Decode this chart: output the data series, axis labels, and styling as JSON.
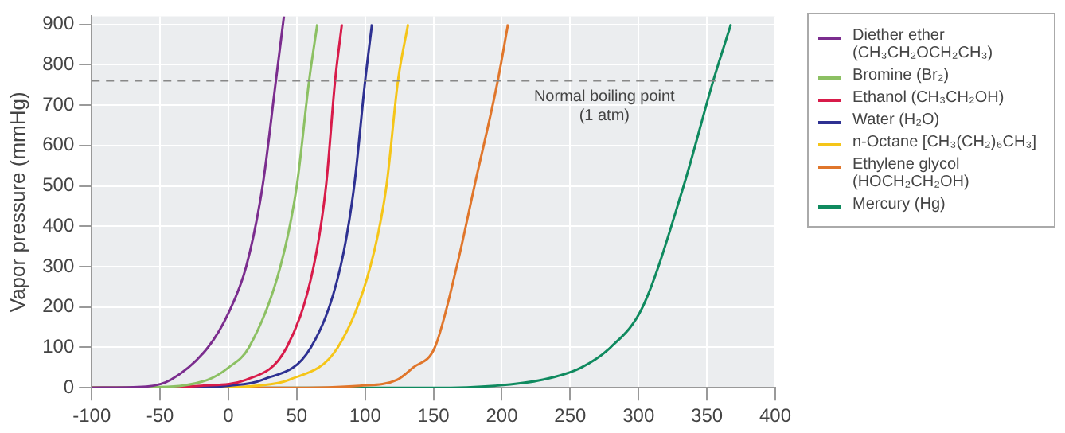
{
  "chart_data": {
    "type": "line",
    "ylabel": "Vapor pressure (mmHg)",
    "xlim": [
      -100,
      400
    ],
    "xticks": [
      -100,
      -50,
      0,
      50,
      100,
      150,
      200,
      250,
      300,
      350,
      400
    ],
    "ylim": [
      0,
      920
    ],
    "yticks": [
      0,
      100,
      200,
      300,
      400,
      500,
      600,
      700,
      800,
      900
    ],
    "grid": true,
    "legend": "right",
    "marker": "none",
    "series": [
      {
        "name": "Diether ether (CH₃CH₂OCH₂CH₃)",
        "color": "#7b2d8e",
        "x": [
          -100,
          -60,
          -42,
          -15,
          0,
          13,
          25,
          34.7,
          40.6
        ],
        "values": [
          0,
          3,
          20,
          100,
          185,
          300,
          500,
          760,
          920
        ]
      },
      {
        "name": "Bromine (Br₂)",
        "color": "#8cc063",
        "x": [
          -100,
          -50,
          -15,
          0,
          15,
          38,
          50,
          59,
          65
        ],
        "values": [
          0,
          2,
          20,
          50,
          100,
          300,
          500,
          760,
          900
        ]
      },
      {
        "name": "Ethanol (CH₃CH₂OH)",
        "color": "#d81b4a",
        "x": [
          -100,
          -60,
          -20,
          13,
          42.6,
          62.3,
          71.4,
          78,
          83
        ],
        "values": [
          0,
          0,
          5,
          20,
          100,
          300,
          500,
          760,
          900
        ]
      },
      {
        "name": "Water (H₂O)",
        "color": "#2e3192",
        "x": [
          -100,
          -40,
          0,
          25,
          60.3,
          82,
          92,
          100,
          105
        ],
        "values": [
          0,
          0,
          5,
          20,
          100,
          300,
          500,
          760,
          900
        ]
      },
      {
        "name": "n-Octane [CH₃(CH₂)₆CH₃]",
        "color": "#f5c518",
        "x": [
          -100,
          -20,
          20,
          44.5,
          80,
          103.8,
          115.6,
          124,
          131.4
        ],
        "values": [
          0,
          0,
          5,
          20,
          100,
          300,
          500,
          760,
          900
        ]
      },
      {
        "name": "Ethylene glycol (HOCH₂CH₂OH)",
        "color": "#e0762b",
        "x": [
          -100,
          40,
          96,
          123.5,
          135,
          151,
          167,
          180,
          197,
          204.5
        ],
        "values": [
          0,
          0,
          5,
          20,
          50,
          100,
          300,
          500,
          760,
          900
        ]
      },
      {
        "name": "Mercury (Hg)",
        "color": "#0f8a5f",
        "x": [
          -100,
          150,
          195,
          230,
          258,
          279.5,
          303,
          333,
          354.6,
          367.6
        ],
        "values": [
          0,
          0,
          5,
          20,
          50,
          100,
          200,
          500,
          760,
          900
        ]
      }
    ],
    "ref_lines": [
      {
        "axis": "y",
        "value": 760,
        "label": "Normal boiling point\n(1 atm)",
        "color": "#888888",
        "line_style": "dashed"
      }
    ]
  }
}
